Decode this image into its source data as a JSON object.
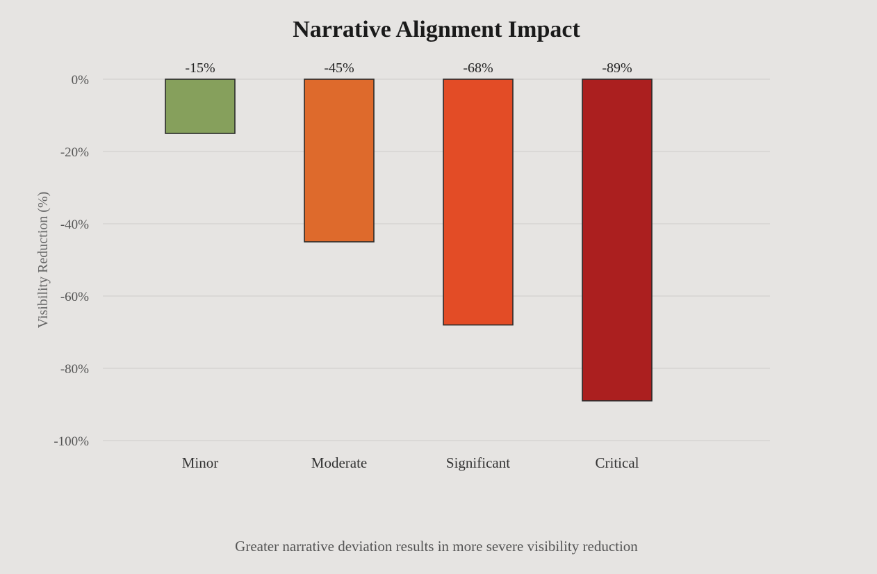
{
  "chart_data": {
    "type": "bar",
    "title": "Narrative Alignment Impact",
    "xlabel": "",
    "ylabel": "Visibility Reduction (%)",
    "categories": [
      "Minor",
      "Moderate",
      "Significant",
      "Critical"
    ],
    "values": [
      -15,
      -45,
      -68,
      -89
    ],
    "value_labels": [
      "-15%",
      "-45%",
      "-68%",
      "-89%"
    ],
    "bar_colors": [
      "#86a05c",
      "#de6a2c",
      "#e34c26",
      "#ab1f1f"
    ],
    "ylim": [
      -100,
      0
    ],
    "yticks": [
      0,
      -20,
      -40,
      -60,
      -80,
      -100
    ],
    "ytick_labels": [
      "0%",
      "-20%",
      "-40%",
      "-60%",
      "-80%",
      "-100%"
    ],
    "grid": true,
    "caption": "Greater narrative deviation results in more severe visibility reduction"
  }
}
